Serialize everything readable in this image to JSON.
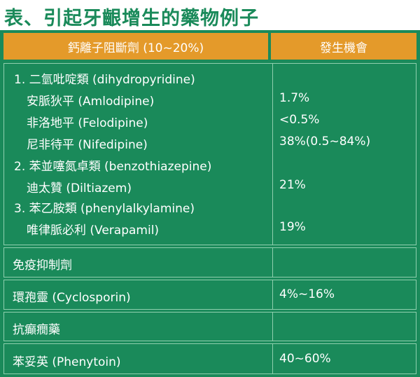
{
  "title": "表、引起牙齦增生的藥物例子",
  "header": {
    "col1": "鈣離子阻斷劑 (10~20%)",
    "col2": "發生機會"
  },
  "block1": {
    "lines": [
      {
        "label": "1. 二氫吡啶類 (dihydropyridine)",
        "value": ""
      },
      {
        "label": "安脈狄平 (Amlodipine)",
        "value": "1.7%"
      },
      {
        "label": "非洛地平 (Felodipine)",
        "value": "<0.5%"
      },
      {
        "label": "尼非待平 (Nifedipine)",
        "value": "38%(0.5~84%)"
      },
      {
        "label": "2. 苯並噻氮卓類 (benzothiazepine)",
        "value": ""
      },
      {
        "label": "迪太贊 (Diltiazem)",
        "value": "21%"
      },
      {
        "label": "3. 苯乙胺類 (phenylalkylamine)",
        "value": ""
      },
      {
        "label": "唯律脈必利 (Verapamil)",
        "value": "19%"
      }
    ]
  },
  "rows": [
    {
      "label": "免疫抑制劑",
      "value": ""
    },
    {
      "label": "環孢靈 (Cyclosporin)",
      "value": "4%~16%"
    },
    {
      "label": "抗癲癇藥",
      "value": ""
    },
    {
      "label": "苯妥英 (Phenytoin)",
      "value": "40~60%"
    }
  ]
}
